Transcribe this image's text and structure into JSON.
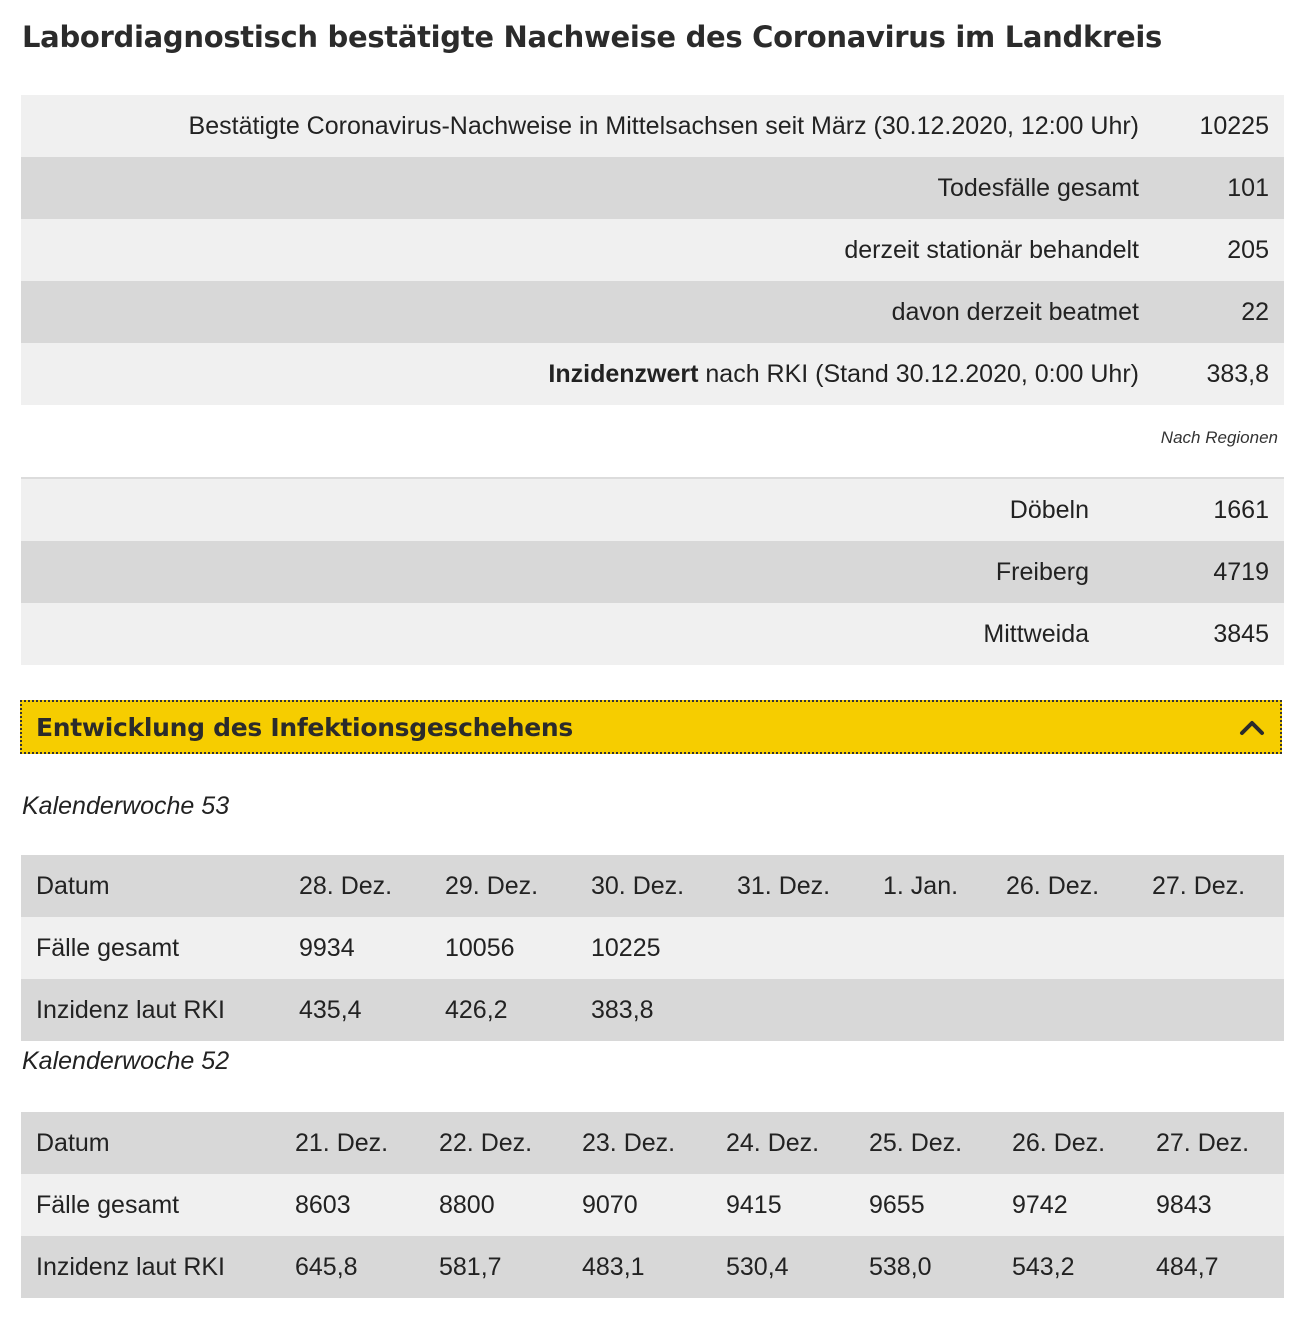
{
  "title": "Labordiagnostisch bestätigte Nachweise des Coronavirus im Landkreis",
  "summary": [
    {
      "label": "Bestätigte Coronavirus-Nachweise in Mittelsachsen seit März (30.12.2020, 12:00 Uhr)",
      "value": "10225"
    },
    {
      "label": "Todesfälle gesamt",
      "value": "101"
    },
    {
      "label": "derzeit stationär behandelt",
      "value": "205"
    },
    {
      "label": "davon derzeit beatmet",
      "value": "22"
    },
    {
      "label_bold": "Inzidenzwert",
      "label_rest": " nach RKI (Stand 30.12.2020, 0:00 Uhr)",
      "value": "383,8"
    }
  ],
  "regions_caption": "Nach Regionen",
  "regions": [
    {
      "label": "Döbeln",
      "value": "1661"
    },
    {
      "label": "Freiberg",
      "value": "4719"
    },
    {
      "label": "Mittweida",
      "value": "3845"
    }
  ],
  "accordion": {
    "title": "Entwicklung des Infektionsgeschehens",
    "icon": "chevron-up-icon"
  },
  "weeks": [
    {
      "caption": "Kalenderwoche 53",
      "header_label": "Datum",
      "dates": [
        "28. Dez.",
        "29. Dez.",
        "30. Dez.",
        "31. Dez.",
        "1. Jan.",
        "26. Dez.",
        "27. Dez."
      ],
      "rows": [
        {
          "label": "Fälle gesamt",
          "values": [
            "9934",
            "10056",
            "10225",
            "",
            "",
            "",
            ""
          ]
        },
        {
          "label": "Inzidenz laut RKI",
          "values": [
            "435,4",
            "426,2",
            "383,8",
            "",
            "",
            "",
            ""
          ]
        }
      ]
    },
    {
      "caption": "Kalenderwoche 52",
      "header_label": "Datum",
      "dates": [
        "21. Dez.",
        "22. Dez.",
        "23. Dez.",
        "24. Dez.",
        "25. Dez.",
        "26. Dez.",
        "27. Dez."
      ],
      "rows": [
        {
          "label": "Fälle gesamt",
          "values": [
            "8603",
            "8800",
            "9070",
            "9415",
            "9655",
            "9742",
            "9843"
          ]
        },
        {
          "label": "Inzidenz laut RKI",
          "values": [
            "645,8",
            "581,7",
            "483,1",
            "530,4",
            "538,0",
            "543,2",
            "484,7"
          ]
        }
      ]
    }
  ]
}
